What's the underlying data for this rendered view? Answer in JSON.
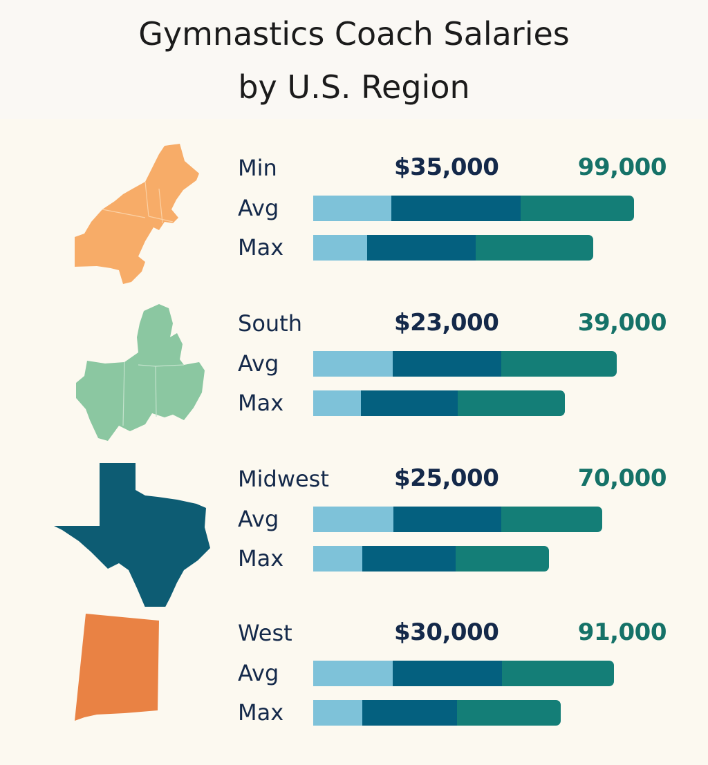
{
  "title_line1": "Gymnastics Coach Salaries",
  "title_line2": "by U.S. Region",
  "colors": {
    "bar_light": "#7ec2d9",
    "bar_dark": "#04607f",
    "bar_teal": "#147e77",
    "map_northeast": "#f7ac68",
    "map_midwest": "#8bc7a1",
    "map_texas": "#0d5c73",
    "map_newmexico": "#e98244",
    "label_text": "#14294a",
    "max_text": "#157268"
  },
  "chart_data": {
    "type": "bar",
    "title": "Gymnastics Coach Salaries by U.S. Region",
    "series": [
      {
        "name": "",
        "color": "#7ec2d9"
      },
      {
        "name": "",
        "color": "#04607f"
      },
      {
        "name": "",
        "color": "#147e77"
      }
    ],
    "regions": [
      {
        "label": "Min",
        "min_value": "$35,000",
        "max_value": "99,000",
        "map_icon": "northeast-map-icon",
        "avg": [
          113,
          187,
          164
        ],
        "max": [
          78,
          157,
          170
        ]
      },
      {
        "label": "South",
        "min_value": "$23,000",
        "max_value": "39,000",
        "map_icon": "midwest-map-icon",
        "avg": [
          115,
          157,
          167
        ],
        "max": [
          69,
          140,
          155
        ]
      },
      {
        "label": "Midwest",
        "min_value": "$25,000",
        "max_value": "70,000",
        "map_icon": "texas-map-icon",
        "avg": [
          116,
          156,
          146
        ],
        "max": [
          71,
          135,
          135
        ]
      },
      {
        "label": "West",
        "min_value": "$30,000",
        "max_value": "91,000",
        "map_icon": "new-mexico-map-icon",
        "avg": [
          115,
          158,
          162
        ],
        "max": [
          71,
          137,
          150
        ]
      }
    ],
    "row_labels": {
      "avg": "Avg",
      "max": "Max"
    },
    "xlabel": "",
    "ylabel": ""
  }
}
